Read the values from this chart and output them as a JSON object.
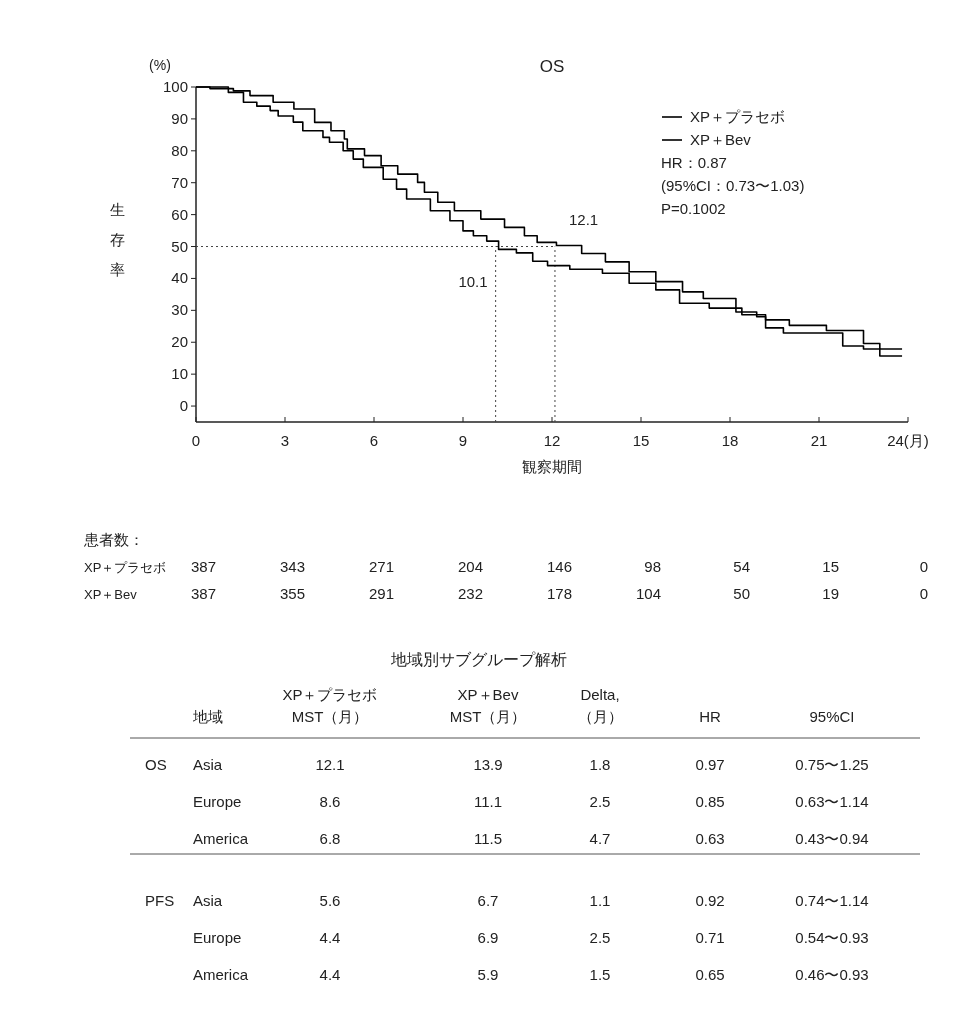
{
  "chart_data": [
    {
      "type": "step",
      "title": "OS",
      "xlabel": "観察期間",
      "ylabel": "生存率",
      "annotations": [
        "(%)",
        "HR：0.87",
        "(95%CI：0.73〜1.03)",
        "P=0.1002"
      ],
      "xlim": [
        0,
        24
      ],
      "ylim": [
        -5,
        100
      ],
      "xticks": [
        0,
        3,
        6,
        9,
        12,
        15,
        18,
        21,
        {
          "value": 24,
          "label": "24(月)"
        }
      ],
      "yticks": [
        0,
        10,
        20,
        30,
        40,
        50,
        60,
        70,
        80,
        90,
        100
      ],
      "legend": "top right",
      "ref_lines": [
        {
          "axis": "y",
          "value": 50,
          "line_style": "dotted"
        },
        {
          "axis": "x",
          "value": 10.1,
          "label": "10.1",
          "line_style": "dotted"
        },
        {
          "axis": "x",
          "value": 12.1,
          "label": "12.1",
          "line_style": "dotted"
        }
      ],
      "series": [
        {
          "name": "XP＋プラセボ",
          "color": "#000000",
          "x": [
            0,
            1.09,
            1.6,
            2.05,
            2.5,
            2.77,
            3.28,
            3.6,
            4.28,
            4.5,
            4.96,
            5.3,
            5.64,
            6.31,
            6.76,
            7.1,
            7.9,
            8.56,
            9.0,
            9.35,
            9.8,
            10.2,
            10.8,
            11.35,
            11.85,
            12.6,
            13.7,
            14.6,
            15.5,
            16.3,
            17.3,
            18.4,
            19.2,
            20.0,
            21.25,
            22.5,
            23.05,
            23.8
          ],
          "values": [
            100,
            98.3,
            95.2,
            94,
            92.6,
            90.9,
            89,
            86.3,
            84.2,
            82.7,
            80,
            77.4,
            74.8,
            71.1,
            68,
            64.9,
            61.2,
            58.1,
            54.9,
            53.4,
            51.7,
            49.1,
            48,
            45.4,
            44,
            42.9,
            41.6,
            38.5,
            36.4,
            32.2,
            30.7,
            28.6,
            27,
            25.3,
            23.7,
            19.6,
            17.9,
            17.9
          ]
        },
        {
          "name": "XP＋Bev",
          "color": "#000000",
          "x": [
            0,
            0.47,
            1.26,
            1.82,
            2.6,
            3.3,
            4.0,
            4.55,
            5.0,
            5.1,
            5.68,
            6.24,
            6.8,
            7.47,
            7.7,
            8.15,
            8.71,
            9.6,
            10.4,
            11.07,
            11.5,
            12.15,
            13.0,
            13.8,
            14.6,
            15.5,
            16.4,
            17.1,
            18.2,
            18.9,
            19.2,
            19.8,
            21.3,
            21.8,
            22.5,
            23.05,
            23.8
          ],
          "values": [
            100,
            99.5,
            98.8,
            97.3,
            95.2,
            93.1,
            88.9,
            86.3,
            83.7,
            80.6,
            78.5,
            75.3,
            72.7,
            70.1,
            67,
            63.9,
            61.2,
            58.6,
            56,
            53.4,
            51.3,
            50.3,
            47.8,
            45.2,
            42.1,
            39,
            35.8,
            33.7,
            29.5,
            28,
            24.5,
            22.9,
            22.9,
            18.8,
            17.9,
            15.7,
            15.7
          ]
        }
      ]
    },
    {
      "type": "other",
      "title": "患者数：",
      "y_categories": [
        "XP＋プラセボ",
        "XP＋Bev"
      ],
      "cell_labels": [
        [
          "387",
          "343",
          "271",
          "204",
          "146",
          "98",
          "54",
          "15",
          "0"
        ],
        [
          "387",
          "355",
          "291",
          "232",
          "178",
          "104",
          "50",
          "19",
          "0"
        ]
      ]
    },
    {
      "type": "other",
      "title": "地域別サブグループ解析",
      "categories": [
        null,
        "地域",
        "XP＋プラセボ\nMST（月）",
        "XP＋Bev\nMST（月）",
        "Delta,\n（月）",
        "HR",
        "95%CI"
      ],
      "cell_labels": [
        [
          "OS",
          "Asia",
          "12.1",
          "13.9",
          "1.8",
          "0.97",
          "0.75〜1.25"
        ],
        [
          null,
          "Europe",
          "8.6",
          "11.1",
          "2.5",
          "0.85",
          "0.63〜1.14"
        ],
        [
          null,
          "America",
          "6.8",
          "11.5",
          "4.7",
          "0.63",
          "0.43〜0.94"
        ],
        [
          "PFS",
          "Asia",
          "5.6",
          "6.7",
          "1.1",
          "0.92",
          "0.74〜1.14"
        ],
        [
          null,
          "Europe",
          "4.4",
          "6.9",
          "2.5",
          "0.71",
          "0.54〜0.93"
        ],
        [
          null,
          "America",
          "4.4",
          "5.9",
          "1.5",
          "0.65",
          "0.46〜0.93"
        ]
      ]
    }
  ]
}
